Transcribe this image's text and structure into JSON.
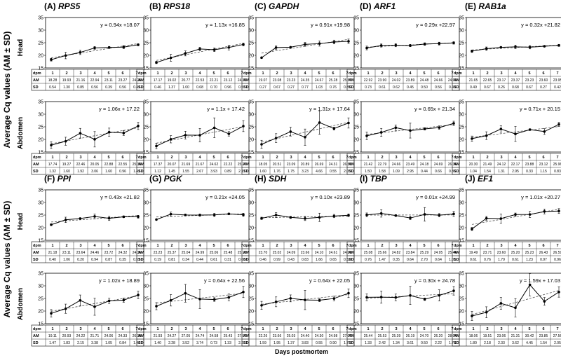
{
  "figure": {
    "ylabel": "Average Cq values (AM ± SD)",
    "xlabel": "Days postmortem",
    "row_labels": {
      "head": "Head",
      "abdomen": "Abdomen"
    },
    "table_labels": {
      "day": "dpm",
      "mean": "AM",
      "sd": "SD"
    }
  },
  "chart_data": [
    {
      "type": "line",
      "letter": "(A)",
      "gene": "RPS5",
      "tissue": "Head",
      "x": [
        1,
        2,
        3,
        4,
        5,
        6,
        7
      ],
      "yticks": [
        15,
        20,
        25,
        30,
        35
      ],
      "ylim": [
        15,
        35
      ],
      "equation": "y = 0.94x +18.07",
      "fit": {
        "slope": 0.94,
        "intercept": 18.07
      },
      "mean": [
        "18.28",
        "19.93",
        "21.16",
        "22.94",
        "23.11",
        "23.27",
        "24.20"
      ],
      "sd": [
        "0.54",
        "1.30",
        "0.85",
        "0.56",
        "0.39",
        "0.56",
        "0.41"
      ]
    },
    {
      "type": "line",
      "letter": "(B)",
      "gene": "RPS18",
      "tissue": "Head",
      "x": [
        1,
        2,
        3,
        4,
        5,
        6,
        7
      ],
      "yticks": [
        15,
        20,
        25,
        30,
        35
      ],
      "ylim": [
        15,
        35
      ],
      "equation": "y = 1.13x +16.85",
      "fit": {
        "slope": 1.13,
        "intercept": 16.85
      },
      "mean": [
        "17.17",
        "19.02",
        "20.77",
        "22.53",
        "22.21",
        "23.12",
        "24.32"
      ],
      "sd": [
        "0.46",
        "1.37",
        "1.00",
        "0.68",
        "0.70",
        "0.96",
        "0.53"
      ]
    },
    {
      "type": "line",
      "letter": "(C)",
      "gene": "GAPDH",
      "tissue": "Head",
      "x": [
        1,
        2,
        3,
        4,
        5,
        6,
        7
      ],
      "yticks": [
        15,
        20,
        25,
        30,
        35
      ],
      "ylim": [
        15,
        35
      ],
      "equation": "y = 0.91x +19.98",
      "fit": {
        "slope": 0.91,
        "intercept": 19.98
      },
      "mean": [
        "19.07",
        "23.08",
        "23.23",
        "24.35",
        "24.67",
        "25.28",
        "25.57"
      ],
      "sd": [
        "0.27",
        "0.67",
        "0.27",
        "0.77",
        "1.03",
        "0.76",
        "0.87"
      ]
    },
    {
      "type": "line",
      "letter": "(D)",
      "gene": "ARF1",
      "tissue": "Head",
      "x": [
        1,
        2,
        3,
        4,
        5,
        6,
        7
      ],
      "yticks": [
        15,
        20,
        25,
        30,
        35
      ],
      "ylim": [
        15,
        35
      ],
      "equation": "y = 0.29x +22.97",
      "fit": {
        "slope": 0.29,
        "intercept": 22.97
      },
      "mean": [
        "22.92",
        "23.90",
        "24.02",
        "23.89",
        "24.48",
        "24.66",
        "24.93"
      ],
      "sd": [
        "0.73",
        "0.61",
        "0.62",
        "0.45",
        "0.50",
        "0.56",
        "0.49"
      ]
    },
    {
      "type": "line",
      "letter": "(E)",
      "gene": "RAB1a",
      "tissue": "Head",
      "x": [
        1,
        2,
        3,
        4,
        5,
        6,
        7
      ],
      "yticks": [
        15,
        20,
        25,
        30,
        35
      ],
      "ylim": [
        15,
        35
      ],
      "equation": "y = 0.32x +21.82",
      "fit": {
        "slope": 0.32,
        "intercept": 21.82
      },
      "mean": [
        "21.65",
        "22.65",
        "23.17",
        "23.37",
        "23.23",
        "23.60",
        "23.95"
      ],
      "sd": [
        "0.49",
        "0.67",
        "0.26",
        "0.68",
        "0.67",
        "0.27",
        "0.42"
      ]
    },
    {
      "type": "line",
      "letter": "(A)",
      "gene": "RPS5",
      "tissue": "Abdomen",
      "x": [
        1,
        2,
        3,
        4,
        5,
        6,
        7
      ],
      "yticks": [
        15,
        20,
        25,
        30,
        35
      ],
      "ylim": [
        15,
        35
      ],
      "equation": "y = 1.06x + 17.22",
      "fit": {
        "slope": 1.06,
        "intercept": 17.22
      },
      "mean": [
        "17.74",
        "19.27",
        "22.46",
        "20.05",
        "22.88",
        "22.55",
        "25.33"
      ],
      "sd": [
        "1.32",
        "1.60",
        "1.92",
        "3.06",
        "1.60",
        "0.96",
        "1.41"
      ]
    },
    {
      "type": "line",
      "letter": "(B)",
      "gene": "RPS18",
      "tissue": "Abdomen",
      "x": [
        1,
        2,
        3,
        4,
        5,
        6,
        7
      ],
      "yticks": [
        15,
        20,
        25,
        30,
        35
      ],
      "ylim": [
        15,
        35
      ],
      "equation": "y = 1.1x + 17.42",
      "fit": {
        "slope": 1.1,
        "intercept": 17.42
      },
      "mean": [
        "17.37",
        "20.07",
        "21.69",
        "21.67",
        "24.62",
        "22.22",
        "25.27"
      ],
      "sd": [
        "1.12",
        "1.45",
        "1.55",
        "2.67",
        "3.93",
        "0.89",
        "2.17"
      ]
    },
    {
      "type": "line",
      "letter": "(C)",
      "gene": "GAPDH",
      "tissue": "Abdomen",
      "x": [
        1,
        2,
        3,
        4,
        5,
        6,
        7
      ],
      "yticks": [
        15,
        20,
        25,
        30,
        35
      ],
      "ylim": [
        15,
        35
      ],
      "equation": "y = 1.31x + 17.64",
      "fit": {
        "slope": 1.31,
        "intercept": 17.64
      },
      "mean": [
        "18.05",
        "20.51",
        "23.09",
        "20.89",
        "26.69",
        "24.31",
        "26.52"
      ],
      "sd": [
        "1.60",
        "1.76",
        "1.75",
        "3.23",
        "4.66",
        "0.55",
        "2.03"
      ]
    },
    {
      "type": "line",
      "letter": "(D)",
      "gene": "ARF1",
      "tissue": "Abdomen",
      "x": [
        1,
        2,
        3,
        4,
        5,
        6,
        7
      ],
      "yticks": [
        15,
        20,
        25,
        30,
        35
      ],
      "ylim": [
        15,
        35
      ],
      "equation": "y = 0.65x + 21.34",
      "fit": {
        "slope": 0.65,
        "intercept": 21.34
      },
      "mean": [
        "21.42",
        "22.79",
        "24.66",
        "23.49",
        "24.18",
        "24.69",
        "26.36"
      ],
      "sd": [
        "1.50",
        "1.58",
        "1.09",
        "2.95",
        "0.44",
        "0.66",
        "0.86"
      ]
    },
    {
      "type": "line",
      "letter": "(E)",
      "gene": "RAB1a",
      "tissue": "Abdomen",
      "x": [
        1,
        2,
        3,
        4,
        5,
        6,
        7
      ],
      "yticks": [
        15,
        20,
        25,
        30,
        35
      ],
      "ylim": [
        15,
        35
      ],
      "equation": "y = 0.71x + 20.15",
      "fit": {
        "slope": 0.71,
        "intercept": 20.15
      },
      "mean": [
        "20.30",
        "21.49",
        "24.12",
        "22.17",
        "23.88",
        "23.12",
        "25.96"
      ],
      "sd": [
        "1.04",
        "1.54",
        "1.31",
        "2.95",
        "0.33",
        "1.15",
        "0.83"
      ]
    },
    {
      "type": "line",
      "letter": "(F)",
      "gene": "PPI",
      "tissue": "Head",
      "x": [
        1,
        2,
        3,
        4,
        5,
        6,
        7
      ],
      "yticks": [
        15,
        20,
        25,
        30,
        35
      ],
      "ylim": [
        15,
        35
      ],
      "equation": "y = 0.43x +21.82",
      "fit": {
        "slope": 0.43,
        "intercept": 21.82
      },
      "mean": [
        "21.18",
        "23.11",
        "23.64",
        "24.46",
        "23.72",
        "24.32",
        "24.35"
      ],
      "sd": [
        "0.40",
        "1.06",
        "0.20",
        "0.94",
        "0.87",
        "0.35",
        "0.57"
      ]
    },
    {
      "type": "line",
      "letter": "(G)",
      "gene": "PGK",
      "tissue": "Head",
      "x": [
        1,
        2,
        3,
        4,
        5,
        6,
        7
      ],
      "yticks": [
        15,
        20,
        25,
        30,
        35
      ],
      "ylim": [
        15,
        35
      ],
      "equation": "y = 0.21x +24.05",
      "fit": {
        "slope": 0.21,
        "intercept": 24.05
      },
      "mean": [
        "23.23",
        "25.37",
        "25.04",
        "24.99",
        "25.06",
        "25.48",
        "25.12"
      ],
      "sd": [
        "0.19",
        "0.81",
        "0.34",
        "0.44",
        "0.61",
        "0.31",
        "0.60"
      ]
    },
    {
      "type": "line",
      "letter": "(H)",
      "gene": "SDH",
      "tissue": "Head",
      "x": [
        1,
        2,
        3,
        4,
        5,
        6,
        7
      ],
      "yticks": [
        15,
        20,
        25,
        30,
        35
      ],
      "ylim": [
        15,
        35
      ],
      "equation": "y = 0.10x +23.89",
      "fit": {
        "slope": 0.1,
        "intercept": 23.89
      },
      "mean": [
        "23.70",
        "25.02",
        "24.09",
        "23.66",
        "24.10",
        "24.61",
        "24.93"
      ],
      "sd": [
        "0.46",
        "0.99",
        "0.43",
        "0.83",
        "1.66",
        "0.65",
        "0.52"
      ]
    },
    {
      "type": "line",
      "letter": "(I)",
      "gene": "TBP",
      "tissue": "Head",
      "x": [
        1,
        2,
        3,
        4,
        5,
        6,
        7
      ],
      "yticks": [
        15,
        20,
        25,
        30,
        35
      ],
      "ylim": [
        15,
        35
      ],
      "equation": "y = 0.01x +24.99",
      "fit": {
        "slope": 0.01,
        "intercept": 24.99
      },
      "mean": [
        "25.08",
        "25.66",
        "24.82",
        "23.84",
        "25.29",
        "24.95",
        "25.46"
      ],
      "sd": [
        "0.76",
        "1.47",
        "0.35",
        "0.64",
        "2.70",
        "0.64",
        "1.01"
      ]
    },
    {
      "type": "line",
      "letter": "(J)",
      "gene": "EF1",
      "tissue": "Head",
      "x": [
        1,
        2,
        3,
        4,
        5,
        6,
        7
      ],
      "yticks": [
        15,
        20,
        25,
        30,
        35
      ],
      "ylim": [
        15,
        35
      ],
      "equation": "y = 1.01x +20.27",
      "fit": {
        "slope": 1.01,
        "intercept": 20.27
      },
      "mean": [
        "19.49",
        "23.71",
        "23.60",
        "25.20",
        "25.23",
        "26.43",
        "26.59"
      ],
      "sd": [
        "0.61",
        "0.76",
        "1.79",
        "0.61",
        "1.23",
        "0.97",
        "0.96"
      ]
    },
    {
      "type": "line",
      "letter": "(F)",
      "gene": "PPI",
      "tissue": "Abdomen",
      "x": [
        1,
        2,
        3,
        4,
        5,
        6,
        7
      ],
      "yticks": [
        15,
        20,
        25,
        30,
        35
      ],
      "ylim": [
        15,
        35
      ],
      "equation": "y = 1.02x + 18.89",
      "fit": {
        "slope": 1.02,
        "intercept": 18.89
      },
      "mean": [
        "19.11",
        "20.93",
        "24.22",
        "21.71",
        "24.06",
        "24.33",
        "26.39"
      ],
      "sd": [
        "1.47",
        "1.83",
        "2.15",
        "3.38",
        "1.05",
        "0.84",
        "1.48"
      ]
    },
    {
      "type": "line",
      "letter": "(G)",
      "gene": "PGK",
      "tissue": "Abdomen",
      "x": [
        1,
        2,
        3,
        4,
        5,
        6,
        7
      ],
      "yticks": [
        15,
        20,
        25,
        30,
        35
      ],
      "ylim": [
        15,
        35
      ],
      "equation": "y = 0.64x + 22.56",
      "fit": {
        "slope": 0.64,
        "intercept": 22.56
      },
      "mean": [
        "21.93",
        "24.27",
        "27.05",
        "24.74",
        "24.58",
        "25.43",
        "27.57"
      ],
      "sd": [
        "1.40",
        "2.28",
        "3.52",
        "3.74",
        "0.73",
        "1.33",
        "2.23"
      ]
    },
    {
      "type": "line",
      "letter": "(H)",
      "gene": "SDH",
      "tissue": "Abdomen",
      "x": [
        1,
        2,
        3,
        4,
        5,
        6,
        7
      ],
      "yticks": [
        15,
        20,
        25,
        30,
        35
      ],
      "ylim": [
        15,
        35
      ],
      "equation": "y = 0.64x + 22.05",
      "fit": {
        "slope": 0.64,
        "intercept": 22.05
      },
      "mean": [
        "22.26",
        "23.66",
        "25.03",
        "24.40",
        "24.30",
        "24.98",
        "27.07"
      ],
      "sd": [
        "1.59",
        "1.95",
        "1.37",
        "3.83",
        "0.55",
        "0.90",
        "1.73"
      ]
    },
    {
      "type": "line",
      "letter": "(I)",
      "gene": "TBP",
      "tissue": "Abdomen",
      "x": [
        1,
        2,
        3,
        4,
        5,
        6,
        7
      ],
      "yticks": [
        15,
        20,
        25,
        30,
        35
      ],
      "ylim": [
        15,
        35
      ],
      "equation": "y = 0.30x + 24.78",
      "fit": {
        "slope": 0.3,
        "intercept": 24.78
      },
      "mean": [
        "25.44",
        "25.53",
        "25.39",
        "26.19",
        "24.70",
        "26.20",
        "28.04"
      ],
      "sd": [
        "1.33",
        "2.42",
        "1.34",
        "3.61",
        "0.50",
        "2.22",
        "1.70"
      ]
    },
    {
      "type": "line",
      "letter": "(J)",
      "gene": "EF1",
      "tissue": "Abdomen",
      "x": [
        1,
        2,
        3,
        4,
        5,
        6,
        7
      ],
      "yticks": [
        15,
        20,
        25,
        30,
        35
      ],
      "ylim": [
        15,
        35
      ],
      "equation": "y = 1.59x + 17.03",
      "fit": {
        "slope": 1.59,
        "intercept": 17.03
      },
      "mean": [
        "18.06",
        "19.51",
        "23.06",
        "21.31",
        "30.42",
        "23.85",
        "27.56"
      ],
      "sd": [
        "1.80",
        "2.18",
        "2.33",
        "3.62",
        "4.45",
        "1.54",
        "2.05"
      ]
    }
  ]
}
